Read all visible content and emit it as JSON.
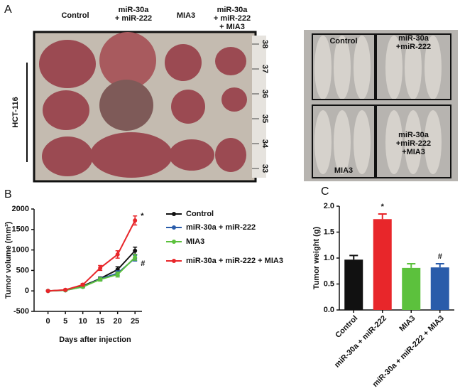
{
  "panel_a": {
    "label": "A",
    "left_photo": {
      "columns": [
        [
          "Control"
        ],
        [
          "miR-30a",
          "+ miR-222"
        ],
        [
          "MIA3"
        ],
        [
          "miR-30a",
          "+ miR-222",
          "+ MIA3"
        ]
      ],
      "row_label": "HCT-116",
      "ruler": [
        38,
        37,
        36,
        35,
        34,
        33
      ]
    },
    "right_photo": {
      "boxes": [
        [
          "Control"
        ],
        [
          "miR-30a",
          "+miR-222"
        ],
        [
          "MIA3"
        ],
        [
          "miR-30a",
          "+miR-222",
          "+MIA3"
        ]
      ]
    }
  },
  "chart_data": [
    {
      "type": "line",
      "panel_label": "B",
      "x_label": "Days after injection",
      "y_label": "Tumor volume (mm³)",
      "x": [
        0,
        5,
        10,
        15,
        20,
        25
      ],
      "xlim": [
        -4,
        27
      ],
      "xticks": [
        0,
        5,
        10,
        15,
        20,
        25
      ],
      "ylim": [
        -500,
        2000
      ],
      "yticks": [
        -500,
        0,
        500,
        1000,
        1500,
        2000
      ],
      "legend": "right",
      "series": [
        {
          "name": "Control",
          "color": "#111111",
          "values": [
            0,
            20,
            120,
            300,
            520,
            980
          ],
          "errors": [
            10,
            15,
            30,
            40,
            70,
            90
          ]
        },
        {
          "name": "miR-30a + miR-222",
          "color": "#2a5caa",
          "values": [
            0,
            15,
            100,
            290,
            430,
            800
          ],
          "errors": [
            10,
            15,
            25,
            40,
            60,
            70
          ]
        },
        {
          "name": "MIA3",
          "color": "#5cc13d",
          "values": [
            0,
            15,
            100,
            280,
            400,
            820
          ],
          "errors": [
            10,
            15,
            25,
            40,
            60,
            70
          ]
        },
        {
          "name": "miR-30a + miR-222 + MIA3",
          "color": "#e8262a",
          "values": [
            0,
            25,
            150,
            560,
            890,
            1720
          ],
          "errors": [
            10,
            15,
            30,
            60,
            90,
            110
          ]
        }
      ],
      "annotations": [
        {
          "text": "*",
          "color": "#e8262a"
        },
        {
          "text": "#",
          "color": "#2a5caa"
        }
      ]
    },
    {
      "type": "bar",
      "panel_label": "C",
      "y_label": "Tumor weight (g)",
      "categories": [
        "Control",
        "miR-30a + miR-222",
        "MIA3",
        "miR-30a + miR-222 + MIA3"
      ],
      "values": [
        0.97,
        1.75,
        0.81,
        0.82
      ],
      "errors": [
        0.08,
        0.1,
        0.08,
        0.07
      ],
      "colors": [
        "#111111",
        "#e8262a",
        "#5cc13d",
        "#2a5caa"
      ],
      "ylim": [
        0,
        2
      ],
      "yticks": [
        {
          "value": 0,
          "label": "0.0"
        },
        0.5,
        {
          "value": 1,
          "label": "1.0"
        },
        1.5,
        {
          "value": 2,
          "label": "2.0"
        }
      ],
      "annotations": [
        {
          "text": "*",
          "color": "#e8262a"
        },
        {
          "text": "#",
          "color": "#2a5caa"
        }
      ]
    }
  ]
}
